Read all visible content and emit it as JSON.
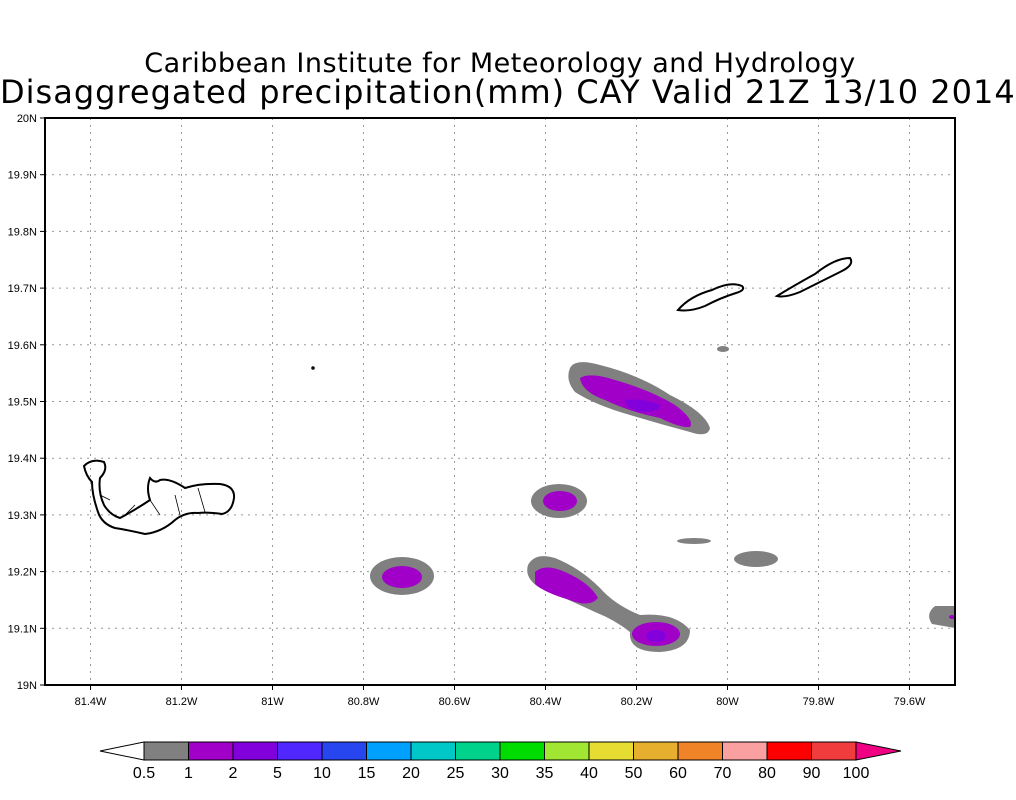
{
  "title": {
    "line1": "Caribbean Institute for Meteorology and Hydrology",
    "line2": "Disaggregated precipitation(mm) CAY Valid 21Z 13/10 2014"
  },
  "map": {
    "lon_range": [
      -81.5,
      -79.5
    ],
    "lat_range": [
      19.0,
      20.0
    ],
    "lon_ticks": [
      {
        "value": -81.4,
        "label": "81.4W"
      },
      {
        "value": -81.2,
        "label": "81.2W"
      },
      {
        "value": -81.0,
        "label": "81W"
      },
      {
        "value": -80.8,
        "label": "80.8W"
      },
      {
        "value": -80.6,
        "label": "80.6W"
      },
      {
        "value": -80.4,
        "label": "80.4W"
      },
      {
        "value": -80.2,
        "label": "80.2W"
      },
      {
        "value": -80.0,
        "label": "80W"
      },
      {
        "value": -79.8,
        "label": "79.8W"
      },
      {
        "value": -79.6,
        "label": "79.6W"
      }
    ],
    "lat_ticks": [
      {
        "value": 19.0,
        "label": "19N"
      },
      {
        "value": 19.1,
        "label": "19.1N"
      },
      {
        "value": 19.2,
        "label": "19.2N"
      },
      {
        "value": 19.3,
        "label": "19.3N"
      },
      {
        "value": 19.4,
        "label": "19.4N"
      },
      {
        "value": 19.5,
        "label": "19.5N"
      },
      {
        "value": 19.6,
        "label": "19.6N"
      },
      {
        "value": 19.7,
        "label": "19.7N"
      },
      {
        "value": 19.8,
        "label": "19.8N"
      },
      {
        "value": 19.9,
        "label": "19.9N"
      },
      {
        "value": 20.0,
        "label": "20N"
      }
    ]
  },
  "colorbar": {
    "labels": [
      "0.5",
      "1",
      "2",
      "5",
      "10",
      "15",
      "20",
      "25",
      "30",
      "35",
      "40",
      "50",
      "60",
      "70",
      "80",
      "90",
      "100"
    ],
    "low_color": "#ffffff",
    "high_color": "#f00082",
    "colors": [
      "#808080",
      "#a000c8",
      "#8200dc",
      "#5028ff",
      "#2846f0",
      "#00a0ff",
      "#00c8c8",
      "#00d28c",
      "#00dc00",
      "#a0e632",
      "#e6dc32",
      "#e6af2d",
      "#f08228",
      "#faa0a0",
      "#ff0000",
      "#f03c3c"
    ]
  }
}
